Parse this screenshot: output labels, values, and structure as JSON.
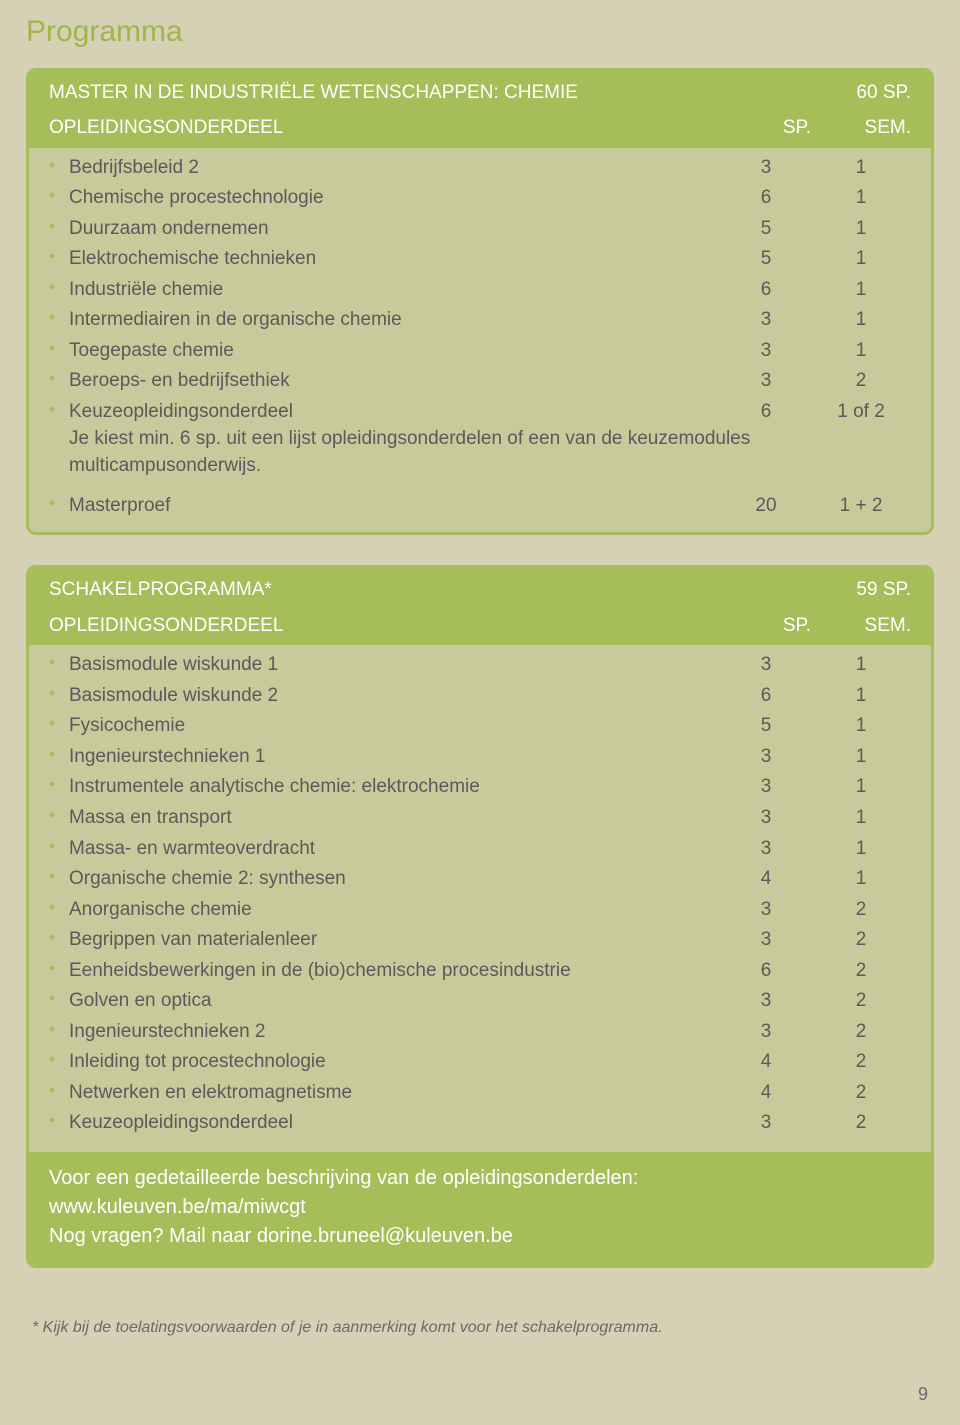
{
  "page": {
    "title": "Programma",
    "number": "9"
  },
  "colors": {
    "background": "#d6d1b5",
    "card_inner": "#c8ca9c",
    "accent": "#a6be5a",
    "text": "#5a5a5a",
    "header_text": "#ffffff"
  },
  "table1": {
    "title": "MASTER IN DE INDUSTRIËLE WETENSCHAPPEN: CHEMIE",
    "total_sp": "60 SP.",
    "col_label": "OPLEIDINGSONDERDEEL",
    "col_sp": "SP.",
    "col_sem": "SEM.",
    "rows": [
      {
        "label": "Bedrijfsbeleid 2",
        "sp": "3",
        "sem": "1"
      },
      {
        "label": "Chemische procestechnologie",
        "sp": "6",
        "sem": "1"
      },
      {
        "label": "Duurzaam ondernemen",
        "sp": "5",
        "sem": "1"
      },
      {
        "label": "Elektrochemische technieken",
        "sp": "5",
        "sem": "1"
      },
      {
        "label": "Industriële chemie",
        "sp": "6",
        "sem": "1"
      },
      {
        "label": "Intermediairen in de organische chemie",
        "sp": "3",
        "sem": "1"
      },
      {
        "label": "Toegepaste chemie",
        "sp": "3",
        "sem": "1"
      },
      {
        "label": "Beroeps- en bedrijfsethiek",
        "sp": "3",
        "sem": "2"
      },
      {
        "label": "Keuzeopleidingsonderdeel",
        "sp": "6",
        "sem": "1 of 2"
      }
    ],
    "note": "Je kiest min. 6 sp. uit een lijst opleidingsonderdelen of een van de keuzemodules multicampusonderwijs.",
    "last_row": {
      "label": "Masterproef",
      "sp": "20",
      "sem": "1 + 2"
    }
  },
  "table2": {
    "title": "SCHAKELPROGRAMMA*",
    "total_sp": "59 SP.",
    "col_label": "OPLEIDINGSONDERDEEL",
    "col_sp": "SP.",
    "col_sem": "SEM.",
    "rows": [
      {
        "label": "Basismodule wiskunde 1",
        "sp": "3",
        "sem": "1"
      },
      {
        "label": "Basismodule wiskunde 2",
        "sp": "6",
        "sem": "1"
      },
      {
        "label": "Fysicochemie",
        "sp": "5",
        "sem": "1"
      },
      {
        "label": "Ingenieurstechnieken 1",
        "sp": "3",
        "sem": "1"
      },
      {
        "label": "Instrumentele analytische chemie: elektrochemie",
        "sp": "3",
        "sem": "1"
      },
      {
        "label": "Massa en transport",
        "sp": "3",
        "sem": "1"
      },
      {
        "label": "Massa- en warmteoverdracht",
        "sp": "3",
        "sem": "1"
      },
      {
        "label": "Organische chemie 2: synthesen",
        "sp": "4",
        "sem": "1"
      },
      {
        "label": "Anorganische chemie",
        "sp": "3",
        "sem": "2"
      },
      {
        "label": "Begrippen van materialenleer",
        "sp": "3",
        "sem": "2"
      },
      {
        "label": "Eenheidsbewerkingen in de (bio)chemische procesindustrie",
        "sp": "6",
        "sem": "2"
      },
      {
        "label": "Golven en optica",
        "sp": "3",
        "sem": "2"
      },
      {
        "label": "Ingenieurstechnieken 2",
        "sp": "3",
        "sem": "2"
      },
      {
        "label": "Inleiding tot procestechnologie",
        "sp": "4",
        "sem": "2"
      },
      {
        "label": "Netwerken en elektromagnetisme",
        "sp": "4",
        "sem": "2"
      },
      {
        "label": "Keuzeopleidingsonderdeel",
        "sp": "3",
        "sem": "2"
      }
    ]
  },
  "footer": {
    "line1": "Voor een gedetailleerde beschrijving van de opleidingsonderdelen:",
    "line2": "www.kuleuven.be/ma/miwcgt",
    "line3a": "Nog vragen? Mail naar ",
    "line3b": "dorine.bruneel@kuleuven.be"
  },
  "footnote": "* Kijk bij de toelatingsvoorwaarden of je in aanmerking komt voor het schakelprogramma."
}
